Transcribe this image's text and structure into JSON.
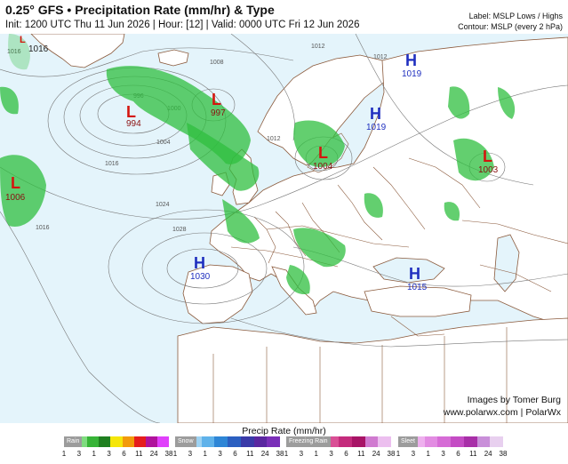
{
  "header": {
    "title": "0.25° GFS • Precipitation Rate (mm/hr) & Type",
    "subtitle": "Init: 1200 UTC Thu 11 Jun 2026 | Hour: [12] | Valid: 0000 UTC Fri 12 Jun 2026",
    "label_note": "Label: MSLP Lows / Highs",
    "contour_note": "Contour: MSLP (every 2 hPa)"
  },
  "map": {
    "colors": {
      "ocean": "#e4f4fb",
      "land": "#ffffff",
      "border": "#8b5a3c",
      "isobar": "#777777",
      "high": "#1f2fbf",
      "low": "#d4150f",
      "rain": "#2fbf3f"
    },
    "pressure_systems": [
      {
        "type": "L",
        "value": "1016",
        "lon_hint": "top-left edge"
      },
      {
        "type": "L",
        "value": "994"
      },
      {
        "type": "L",
        "value": "997"
      },
      {
        "type": "L",
        "value": "1006"
      },
      {
        "type": "L",
        "value": "1004"
      },
      {
        "type": "L",
        "value": "1003"
      },
      {
        "type": "H",
        "value": "1019"
      },
      {
        "type": "H",
        "value": "1019"
      },
      {
        "type": "H",
        "value": "1030"
      },
      {
        "type": "H",
        "value": "1015"
      }
    ],
    "isobar_labels": [
      "1016",
      "1008",
      "1012",
      "996",
      "1000",
      "1004",
      "1016",
      "1024",
      "1028",
      "1012",
      "1016",
      "1012"
    ]
  },
  "credits": {
    "line1": "Images by Tomer Burg",
    "line2": "www.polarwx.com | PolarWx"
  },
  "legend": {
    "title": "Precip Rate (mm/hr)",
    "bars": [
      {
        "label": "Rain",
        "colors": [
          "#c7f3c7",
          "#7fdc7f",
          "#37b437",
          "#1f7f1f",
          "#f5e60a",
          "#f29a0a",
          "#e51d1d",
          "#b0129c",
          "#e040fb"
        ],
        "ticks": [
          "1",
          "3",
          "1",
          "3",
          "6",
          "11",
          "24",
          "38"
        ]
      },
      {
        "label": "Snow",
        "colors": [
          "#cfe8f7",
          "#9ed2f2",
          "#5fb2ea",
          "#2e86d6",
          "#2b5fc0",
          "#3a3aa8",
          "#5a27a0",
          "#7a2fb8"
        ],
        "ticks": [
          "1",
          "3",
          "1",
          "3",
          "6",
          "11",
          "24",
          "38"
        ]
      },
      {
        "label": "Freezing Rain",
        "colors": [
          "#f7d6e6",
          "#f0a8cb",
          "#e67bb0",
          "#d94f95",
          "#c42b7c",
          "#a81466",
          "#d07ad0",
          "#ecbfef"
        ],
        "ticks": [
          "1",
          "3",
          "1",
          "3",
          "6",
          "11",
          "24",
          "38"
        ]
      },
      {
        "label": "Sleet",
        "colors": [
          "#f6d2f6",
          "#eeb0ee",
          "#e28ce2",
          "#d66cd6",
          "#c44cc4",
          "#a82fa8",
          "#c98fd9",
          "#e8d0ef"
        ],
        "ticks": [
          "1",
          "3",
          "1",
          "3",
          "6",
          "11",
          "24",
          "38"
        ]
      }
    ]
  }
}
